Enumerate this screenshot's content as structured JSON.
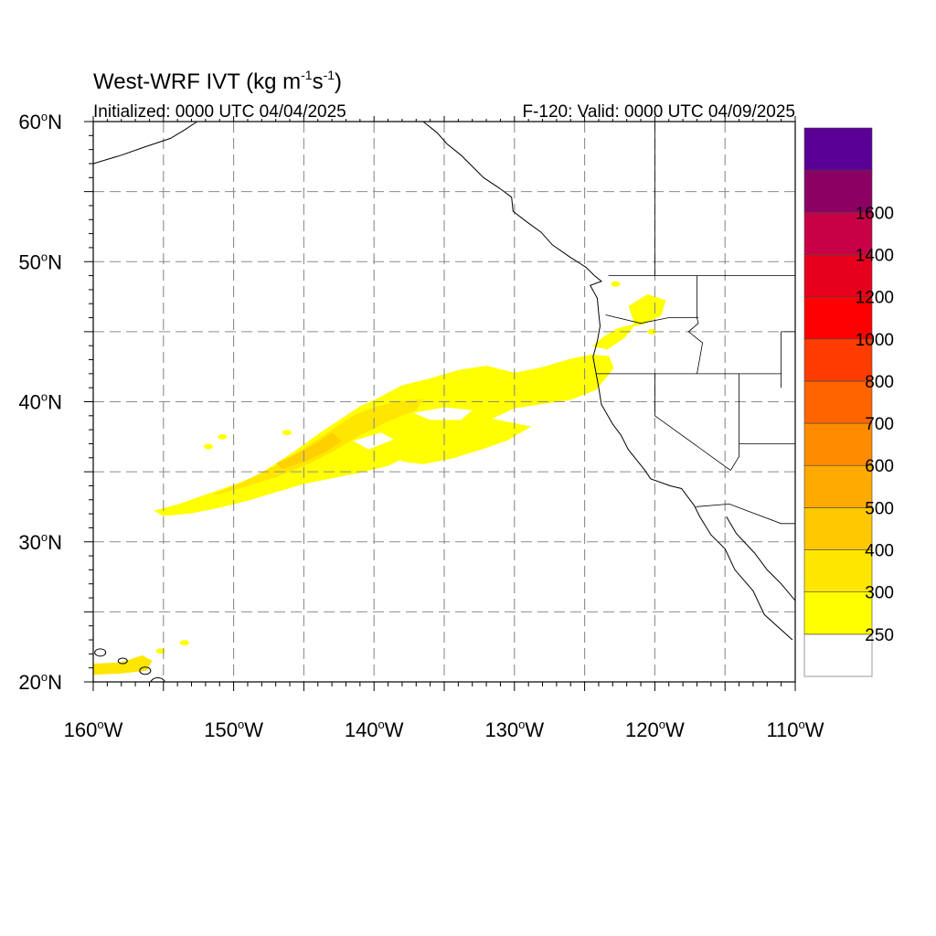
{
  "title": {
    "main": "West-WRF IVT (kg m",
    "sup1": "-1",
    "mid": "s",
    "sup2": "-1",
    "end": ")"
  },
  "initialized": "Initialized: 0000 UTC 04/04/2025",
  "valid": "F-120: Valid: 0000 UTC 04/09/2025",
  "degree_symbol": "o",
  "map": {
    "lon_range": [
      -160,
      -110
    ],
    "lat_range": [
      20,
      60
    ],
    "gridlines": "dashed",
    "lon_labels": [
      {
        "lon": -160,
        "text": "160",
        "hemi": "W"
      },
      {
        "lon": -150,
        "text": "150",
        "hemi": "W"
      },
      {
        "lon": -140,
        "text": "140",
        "hemi": "W"
      },
      {
        "lon": -130,
        "text": "130",
        "hemi": "W"
      },
      {
        "lon": -120,
        "text": "120",
        "hemi": "W"
      },
      {
        "lon": -110,
        "text": "110",
        "hemi": "W"
      }
    ],
    "lat_labels": [
      {
        "lat": 60,
        "text": "60",
        "hemi": "N"
      },
      {
        "lat": 50,
        "text": "50",
        "hemi": "N"
      },
      {
        "lat": 40,
        "text": "40",
        "hemi": "N"
      },
      {
        "lat": 30,
        "text": "30",
        "hemi": "N"
      },
      {
        "lat": 20,
        "text": "20",
        "hemi": "N"
      }
    ]
  },
  "colorbar": {
    "placement": "right",
    "levels": [
      {
        "label": "",
        "color": "#ffffff"
      },
      {
        "label": "250",
        "color": "#ffff00"
      },
      {
        "label": "300",
        "color": "#ffe600"
      },
      {
        "label": "400",
        "color": "#ffc800"
      },
      {
        "label": "500",
        "color": "#ffaa00"
      },
      {
        "label": "600",
        "color": "#ff8c00"
      },
      {
        "label": "700",
        "color": "#ff6400"
      },
      {
        "label": "800",
        "color": "#ff3c00"
      },
      {
        "label": "1000",
        "color": "#ff0000"
      },
      {
        "label": "1200",
        "color": "#e6001e"
      },
      {
        "label": "1400",
        "color": "#c80046"
      },
      {
        "label": "1600",
        "color": "#8c0064"
      },
      {
        "label": "",
        "color": "#5a0096"
      }
    ]
  },
  "ivt_field": {
    "main_plume": [
      [
        -155.5,
        32.2
      ],
      [
        -154,
        32.6
      ],
      [
        -152,
        33.3
      ],
      [
        -150,
        34.0
      ],
      [
        -148.5,
        34.6
      ],
      [
        -147,
        35.5
      ],
      [
        -145.5,
        36.5
      ],
      [
        -144,
        37.6
      ],
      [
        -142.5,
        38.6
      ],
      [
        -141,
        39.6
      ],
      [
        -139.5,
        40.3
      ],
      [
        -138,
        41.1
      ],
      [
        -136,
        41.6
      ],
      [
        -134,
        42.2
      ],
      [
        -132,
        42.5
      ],
      [
        -130,
        42.0
      ],
      [
        -128,
        42.4
      ],
      [
        -126,
        43.0
      ],
      [
        -124.5,
        43.3
      ],
      [
        -123.3,
        43.2
      ],
      [
        -123,
        42.4
      ],
      [
        -124.2,
        40.9
      ],
      [
        -126,
        40.2
      ],
      [
        -128,
        39.9
      ],
      [
        -130,
        39.6
      ],
      [
        -131.5,
        38.9
      ],
      [
        -133,
        38.2
      ],
      [
        -134.5,
        37.7
      ],
      [
        -136,
        37.0
      ],
      [
        -137.5,
        36.2
      ],
      [
        -139,
        35.5
      ],
      [
        -141,
        35.0
      ],
      [
        -143,
        34.6
      ],
      [
        -145,
        34.2
      ],
      [
        -147,
        33.6
      ],
      [
        -149,
        33.0
      ],
      [
        -151,
        32.5
      ],
      [
        -153,
        32.1
      ],
      [
        -155,
        31.9
      ]
    ],
    "inner_core": [
      [
        -151.5,
        33.4
      ],
      [
        -149.5,
        34.2
      ],
      [
        -147.5,
        35.2
      ],
      [
        -146,
        36.0
      ],
      [
        -144.5,
        37.0
      ],
      [
        -143,
        38.0
      ],
      [
        -141.5,
        39.0
      ],
      [
        -140,
        39.6
      ],
      [
        -138.5,
        40.0
      ],
      [
        -136.5,
        40.2
      ],
      [
        -137,
        39.4
      ],
      [
        -139,
        38.6
      ],
      [
        -141,
        37.6
      ],
      [
        -143,
        36.4
      ],
      [
        -145,
        35.4
      ],
      [
        -147,
        34.6
      ],
      [
        -149,
        34.0
      ],
      [
        -151,
        33.4
      ]
    ],
    "darker_core": [
      [
        -147,
        35.6
      ],
      [
        -145.5,
        36.3
      ],
      [
        -144,
        37.1
      ],
      [
        -143,
        37.8
      ],
      [
        -142.3,
        37.2
      ],
      [
        -143.5,
        36.4
      ],
      [
        -145,
        35.7
      ],
      [
        -146.5,
        35.2
      ]
    ],
    "secondary_band": [
      [
        -138,
        38.2
      ],
      [
        -136,
        38.8
      ],
      [
        -134,
        39.2
      ],
      [
        -132,
        38.8
      ],
      [
        -130.5,
        38.5
      ],
      [
        -129,
        38.2
      ],
      [
        -130.5,
        37.3
      ],
      [
        -132.5,
        36.6
      ],
      [
        -134.5,
        36.0
      ],
      [
        -136.5,
        35.6
      ],
      [
        -138,
        35.8
      ]
    ],
    "oregon_blob": [
      [
        -121.8,
        46.8
      ],
      [
        -120.5,
        47.6
      ],
      [
        -119.3,
        47.2
      ],
      [
        -119.6,
        46.2
      ],
      [
        -120.8,
        45.6
      ],
      [
        -122.6,
        45.2
      ],
      [
        -123.6,
        44.6
      ],
      [
        -124.3,
        44.0
      ],
      [
        -123.4,
        43.8
      ],
      [
        -122.2,
        44.6
      ],
      [
        -121.4,
        45.6
      ]
    ],
    "hawaii_patch": [
      [
        -160,
        21.3
      ],
      [
        -158,
        21.4
      ],
      [
        -156.5,
        21.9
      ],
      [
        -155.8,
        21.5
      ],
      [
        -156.2,
        20.8
      ],
      [
        -158,
        20.6
      ],
      [
        -160,
        20.5
      ]
    ],
    "isolated_cells": [
      [
        -150.8,
        37.5
      ],
      [
        -151.8,
        36.8
      ],
      [
        -146.2,
        37.8
      ],
      [
        -136.5,
        36.4
      ],
      [
        -131.0,
        39.8
      ],
      [
        -120.2,
        45.0
      ],
      [
        -122.8,
        48.4
      ],
      [
        -153.5,
        22.8
      ],
      [
        -155.2,
        22.2
      ]
    ]
  },
  "geography": {
    "coast": [
      [
        -131,
        55.2
      ],
      [
        -130.2,
        54.6
      ],
      [
        -130.1,
        53.6
      ],
      [
        -129.2,
        52.9
      ],
      [
        -128.1,
        52.1
      ],
      [
        -127.3,
        51.2
      ],
      [
        -126.0,
        50.3
      ],
      [
        -124.9,
        49.6
      ],
      [
        -124.3,
        49.0
      ],
      [
        -123.8,
        48.6
      ],
      [
        -124.6,
        48.3
      ],
      [
        -124.1,
        47.4
      ],
      [
        -124.0,
        46.3
      ],
      [
        -123.9,
        45.4
      ],
      [
        -124.1,
        44.3
      ],
      [
        -124.4,
        43.2
      ],
      [
        -124.2,
        42.1
      ],
      [
        -124.0,
        41.0
      ],
      [
        -123.8,
        39.8
      ],
      [
        -123.0,
        38.4
      ],
      [
        -122.4,
        37.6
      ],
      [
        -121.9,
        36.6
      ],
      [
        -120.7,
        35.1
      ],
      [
        -120.3,
        34.5
      ],
      [
        -118.9,
        34.0
      ],
      [
        -118.1,
        33.8
      ],
      [
        -117.2,
        32.6
      ],
      [
        -116.8,
        31.8
      ],
      [
        -116.0,
        30.5
      ],
      [
        -115.0,
        29.5
      ],
      [
        -114.3,
        28.0
      ],
      [
        -113.0,
        26.5
      ],
      [
        -112.2,
        24.8
      ],
      [
        -110.2,
        23.0
      ]
    ],
    "gulf_coast": [
      [
        -114.9,
        31.8
      ],
      [
        -114.2,
        30.6
      ],
      [
        -112.9,
        29.2
      ],
      [
        -112.0,
        28.0
      ],
      [
        -111.0,
        27.0
      ],
      [
        -110.0,
        25.8
      ]
    ],
    "alaska_coast": [
      [
        -136.5,
        60
      ],
      [
        -135.5,
        59.2
      ],
      [
        -134.8,
        58.4
      ],
      [
        -133.8,
        57.6
      ],
      [
        -133.0,
        56.8
      ],
      [
        -132.2,
        56.0
      ],
      [
        -131,
        55.2
      ]
    ],
    "alaska_west": [
      [
        -160,
        57.0
      ],
      [
        -158,
        57.6
      ],
      [
        -156.3,
        58.2
      ],
      [
        -154.5,
        58.8
      ],
      [
        -153.5,
        59.4
      ],
      [
        -152.6,
        60
      ]
    ],
    "borders": [
      [
        [
          -123.3,
          49.0
        ],
        [
          -110,
          49.0
        ]
      ],
      [
        [
          -124.2,
          42.0
        ],
        [
          -111,
          42.0
        ]
      ],
      [
        [
          -120.0,
          42.0
        ],
        [
          -120.0,
          39.0
        ],
        [
          -114.6,
          35.1
        ]
      ],
      [
        [
          -117.0,
          49.0
        ],
        [
          -117.0,
          46.0
        ],
        [
          -116.9,
          45.6
        ],
        [
          -117.6,
          45.0
        ],
        [
          -116.6,
          44.2
        ],
        [
          -117.0,
          42.0
        ]
      ],
      [
        [
          -123.5,
          46.2
        ],
        [
          -121.0,
          45.6
        ],
        [
          -119.0,
          46.0
        ],
        [
          -116.9,
          46.0
        ]
      ],
      [
        [
          -114.0,
          42.0
        ],
        [
          -114.0,
          36.1
        ],
        [
          -114.6,
          35.1
        ]
      ],
      [
        [
          -117.1,
          32.5
        ],
        [
          -114.7,
          32.7
        ],
        [
          -111.0,
          31.3
        ],
        [
          -110,
          31.3
        ]
      ],
      [
        [
          -114.0,
          37.0
        ],
        [
          -110,
          37.0
        ]
      ],
      [
        [
          -120,
          60
        ],
        [
          -120,
          49.0
        ]
      ],
      [
        [
          -111,
          41.0
        ],
        [
          -111,
          45.0
        ],
        [
          -110,
          45.0
        ]
      ]
    ]
  }
}
